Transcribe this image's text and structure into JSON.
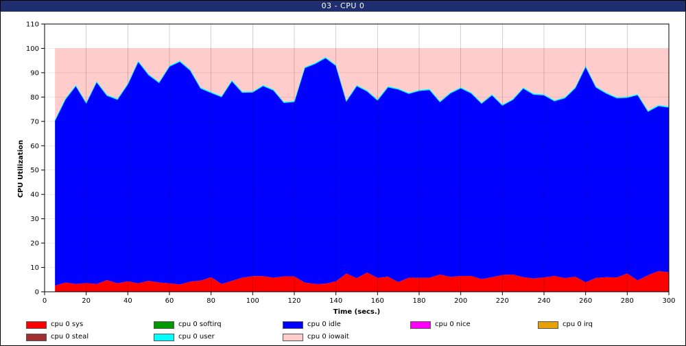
{
  "window": {
    "title": "03 - CPU 0"
  },
  "chart_data": {
    "type": "area",
    "stacked": true,
    "xlabel": "Time (secs.)",
    "ylabel": "CPU Utilization",
    "xlim": [
      0,
      300
    ],
    "ylim": [
      0,
      110
    ],
    "xticks": [
      0,
      20,
      40,
      60,
      80,
      100,
      120,
      140,
      160,
      180,
      200,
      220,
      240,
      260,
      280,
      300
    ],
    "yticks": [
      0,
      10,
      20,
      30,
      40,
      50,
      60,
      70,
      80,
      90,
      100,
      110
    ],
    "grid": true,
    "legend_position": "bottom",
    "x": [
      5,
      10,
      15,
      20,
      25,
      30,
      35,
      40,
      45,
      50,
      55,
      60,
      65,
      70,
      75,
      80,
      85,
      90,
      95,
      100,
      105,
      110,
      115,
      120,
      125,
      130,
      135,
      140,
      145,
      150,
      155,
      160,
      165,
      170,
      175,
      180,
      185,
      190,
      195,
      200,
      205,
      210,
      215,
      220,
      225,
      230,
      235,
      240,
      245,
      250,
      255,
      260,
      265,
      270,
      275,
      280,
      285,
      290,
      295,
      300
    ],
    "series": [
      {
        "name": "cpu 0 sys",
        "color": "#ff0000",
        "values": [
          2.5,
          3.8,
          3.2,
          3.6,
          3.2,
          4.8,
          3.5,
          4.3,
          3.5,
          4.5,
          3.8,
          3.5,
          3.0,
          4.2,
          4.6,
          6.0,
          3.2,
          4.5,
          5.8,
          6.4,
          6.4,
          5.8,
          6.3,
          6.3,
          3.8,
          3.2,
          3.3,
          4.3,
          7.5,
          5.6,
          7.9,
          5.7,
          6.2,
          4.0,
          5.8,
          5.7,
          5.8,
          7.1,
          6.1,
          6.5,
          6.5,
          5.2,
          6.0,
          6.9,
          7.1,
          6.0,
          5.5,
          5.9,
          6.5,
          5.6,
          6.2,
          3.9,
          5.7,
          6.0,
          5.9,
          7.5,
          4.7,
          6.8,
          8.5,
          8.0
        ]
      },
      {
        "name": "cpu 0 softirq",
        "color": "#009900",
        "values": [
          0,
          0,
          0,
          0,
          0,
          0,
          0,
          0,
          0,
          0,
          0,
          0,
          0,
          0,
          0,
          0,
          0,
          0,
          0,
          0,
          0,
          0,
          0,
          0,
          0,
          0,
          0,
          0,
          0,
          0,
          0,
          0,
          0,
          0,
          0,
          0,
          0,
          0,
          0,
          0,
          0,
          0,
          0,
          0,
          0,
          0,
          0,
          0,
          0,
          0,
          0,
          0,
          0,
          0,
          0,
          0,
          0,
          0,
          0,
          0
        ]
      },
      {
        "name": "cpu 0 idle",
        "color": "#0000ff",
        "values": [
          67.9,
          75.3,
          81.4,
          73.9,
          83.0,
          75.8,
          75.5,
          81.0,
          91.1,
          84.6,
          82.1,
          89.1,
          91.6,
          86.8,
          79.0,
          75.8,
          76.9,
          82.1,
          76.1,
          75.6,
          78.2,
          77.0,
          71.4,
          71.8,
          88.2,
          90.5,
          92.8,
          88.6,
          70.8,
          79.0,
          74.5,
          73.0,
          77.9,
          79.2,
          75.6,
          76.9,
          77.2,
          70.9,
          75.5,
          77.2,
          75.1,
          72.2,
          74.8,
          69.7,
          71.8,
          77.6,
          75.6,
          74.9,
          71.9,
          74.0,
          77.5,
          88.6,
          78.3,
          75.5,
          73.7,
          72.3,
          76.2,
          67.3,
          67.9,
          67.8
        ]
      },
      {
        "name": "cpu 0 nice",
        "color": "#ff00ff",
        "values": [
          0,
          0,
          0,
          0,
          0,
          0,
          0,
          0,
          0,
          0,
          0,
          0,
          0,
          0,
          0,
          0,
          0,
          0,
          0,
          0,
          0,
          0,
          0,
          0,
          0,
          0,
          0,
          0,
          0,
          0,
          0,
          0,
          0,
          0,
          0,
          0,
          0,
          0,
          0,
          0,
          0,
          0,
          0,
          0,
          0,
          0,
          0,
          0,
          0,
          0,
          0,
          0,
          0,
          0,
          0,
          0,
          0,
          0,
          0,
          0
        ]
      },
      {
        "name": "cpu 0 irq",
        "color": "#e8a000",
        "values": [
          0,
          0,
          0,
          0,
          0,
          0,
          0,
          0,
          0,
          0,
          0,
          0,
          0,
          0,
          0,
          0,
          0,
          0,
          0,
          0,
          0,
          0,
          0,
          0,
          0,
          0,
          0,
          0,
          0,
          0,
          0,
          0,
          0,
          0,
          0,
          0,
          0,
          0,
          0,
          0,
          0,
          0,
          0,
          0,
          0,
          0,
          0,
          0,
          0,
          0,
          0,
          0,
          0,
          0,
          0,
          0,
          0,
          0,
          0,
          0
        ]
      },
      {
        "name": "cpu 0 steal",
        "color": "#a03030",
        "values": [
          0,
          0,
          0,
          0,
          0,
          0,
          0,
          0,
          0,
          0,
          0,
          0,
          0,
          0,
          0,
          0,
          0,
          0,
          0,
          0,
          0,
          0,
          0,
          0,
          0,
          0,
          0,
          0,
          0,
          0,
          0,
          0,
          0,
          0,
          0,
          0,
          0,
          0,
          0,
          0,
          0,
          0,
          0,
          0,
          0,
          0,
          0,
          0,
          0,
          0,
          0,
          0,
          0,
          0,
          0,
          0,
          0,
          0,
          0,
          0
        ]
      },
      {
        "name": "cpu 0 user",
        "color": "#00ffff",
        "values": [
          0.3,
          0.3,
          0.3,
          0.3,
          0.3,
          0.3,
          0.3,
          0.3,
          0.3,
          0.3,
          0.3,
          0.3,
          0.3,
          0.3,
          0.3,
          0.3,
          0.3,
          0.3,
          0.3,
          0.3,
          0.3,
          0.3,
          0.3,
          0.3,
          0.3,
          0.3,
          0.3,
          0.3,
          0.3,
          0.3,
          0.3,
          0.3,
          0.3,
          0.3,
          0.3,
          0.3,
          0.3,
          0.3,
          0.3,
          0.3,
          0.3,
          0.3,
          0.3,
          0.3,
          0.3,
          0.3,
          0.3,
          0.3,
          0.3,
          0.3,
          0.3,
          0.3,
          0.3,
          0.3,
          0.3,
          0.3,
          0.3,
          0.3,
          0.3,
          0.3
        ]
      },
      {
        "name": "cpu 0 iowait",
        "color": "#ffcccc",
        "values": [
          29.3,
          20.6,
          15.1,
          22.2,
          13.5,
          19.1,
          20.7,
          14.4,
          5.1,
          10.6,
          13.8,
          7.1,
          5.1,
          8.7,
          16.1,
          17.9,
          19.6,
          13.1,
          17.8,
          17.7,
          15.1,
          16.9,
          22.0,
          21.6,
          7.7,
          6.0,
          3.6,
          6.8,
          21.4,
          15.1,
          17.3,
          21.0,
          15.6,
          16.5,
          18.3,
          17.1,
          16.7,
          21.7,
          18.1,
          16.0,
          18.1,
          22.3,
          18.9,
          23.1,
          20.8,
          16.1,
          18.6,
          18.9,
          21.3,
          20.1,
          16.0,
          7.2,
          15.7,
          18.2,
          20.1,
          19.9,
          18.8,
          25.6,
          23.3,
          23.9
        ]
      }
    ]
  }
}
